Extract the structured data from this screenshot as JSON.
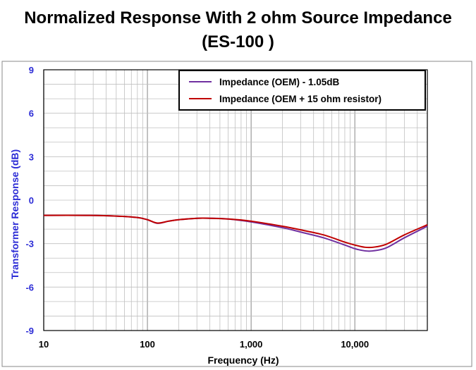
{
  "header": {
    "title_line1": "Normalized Response With 2 ohm Source Impedance",
    "title_line2": "(ES-100 )"
  },
  "chart_data": {
    "type": "line",
    "xlabel": "Frequency (Hz)",
    "ylabel": "Transformer Response (dB)",
    "x_scale": "log",
    "xlim": [
      10,
      50000
    ],
    "ylim": [
      -9,
      9
    ],
    "x_ticks": [
      {
        "value": 10,
        "label": "10"
      },
      {
        "value": 100,
        "label": "100"
      },
      {
        "value": 1000,
        "label": "1,000"
      },
      {
        "value": 10000,
        "label": "10,000"
      }
    ],
    "y_ticks": [
      {
        "value": 9,
        "label": "9"
      },
      {
        "value": 6,
        "label": "6"
      },
      {
        "value": 3,
        "label": "3"
      },
      {
        "value": 0,
        "label": "0"
      },
      {
        "value": -3,
        "label": "-3"
      },
      {
        "value": -6,
        "label": "-6"
      },
      {
        "value": -9,
        "label": "-9"
      }
    ],
    "grid": true,
    "legend_position": "top-right",
    "colors": {
      "axis_label": "#2b2bd6",
      "grid": "#c0c0c0",
      "frame": "#000000"
    },
    "series": [
      {
        "name": "Impedance (OEM) - 1.05dB",
        "color": "#7030a0",
        "points": [
          [
            10,
            -1.05
          ],
          [
            25,
            -1.05
          ],
          [
            50,
            -1.1
          ],
          [
            80,
            -1.2
          ],
          [
            100,
            -1.35
          ],
          [
            125,
            -1.6
          ],
          [
            160,
            -1.45
          ],
          [
            200,
            -1.35
          ],
          [
            300,
            -1.25
          ],
          [
            400,
            -1.25
          ],
          [
            600,
            -1.3
          ],
          [
            1000,
            -1.5
          ],
          [
            2000,
            -1.9
          ],
          [
            3000,
            -2.2
          ],
          [
            5000,
            -2.6
          ],
          [
            8000,
            -3.1
          ],
          [
            10000,
            -3.35
          ],
          [
            12500,
            -3.5
          ],
          [
            15000,
            -3.5
          ],
          [
            20000,
            -3.3
          ],
          [
            30000,
            -2.6
          ],
          [
            50000,
            -1.8
          ]
        ]
      },
      {
        "name": "Impedance (OEM + 15 ohm resistor)",
        "color": "#c00000",
        "points": [
          [
            10,
            -1.05
          ],
          [
            25,
            -1.05
          ],
          [
            50,
            -1.1
          ],
          [
            80,
            -1.2
          ],
          [
            100,
            -1.35
          ],
          [
            125,
            -1.58
          ],
          [
            160,
            -1.45
          ],
          [
            200,
            -1.35
          ],
          [
            300,
            -1.25
          ],
          [
            400,
            -1.25
          ],
          [
            600,
            -1.3
          ],
          [
            1000,
            -1.45
          ],
          [
            2000,
            -1.8
          ],
          [
            3000,
            -2.05
          ],
          [
            5000,
            -2.4
          ],
          [
            8000,
            -2.9
          ],
          [
            10000,
            -3.1
          ],
          [
            12500,
            -3.25
          ],
          [
            15000,
            -3.25
          ],
          [
            20000,
            -3.05
          ],
          [
            30000,
            -2.4
          ],
          [
            50000,
            -1.7
          ]
        ]
      }
    ]
  }
}
